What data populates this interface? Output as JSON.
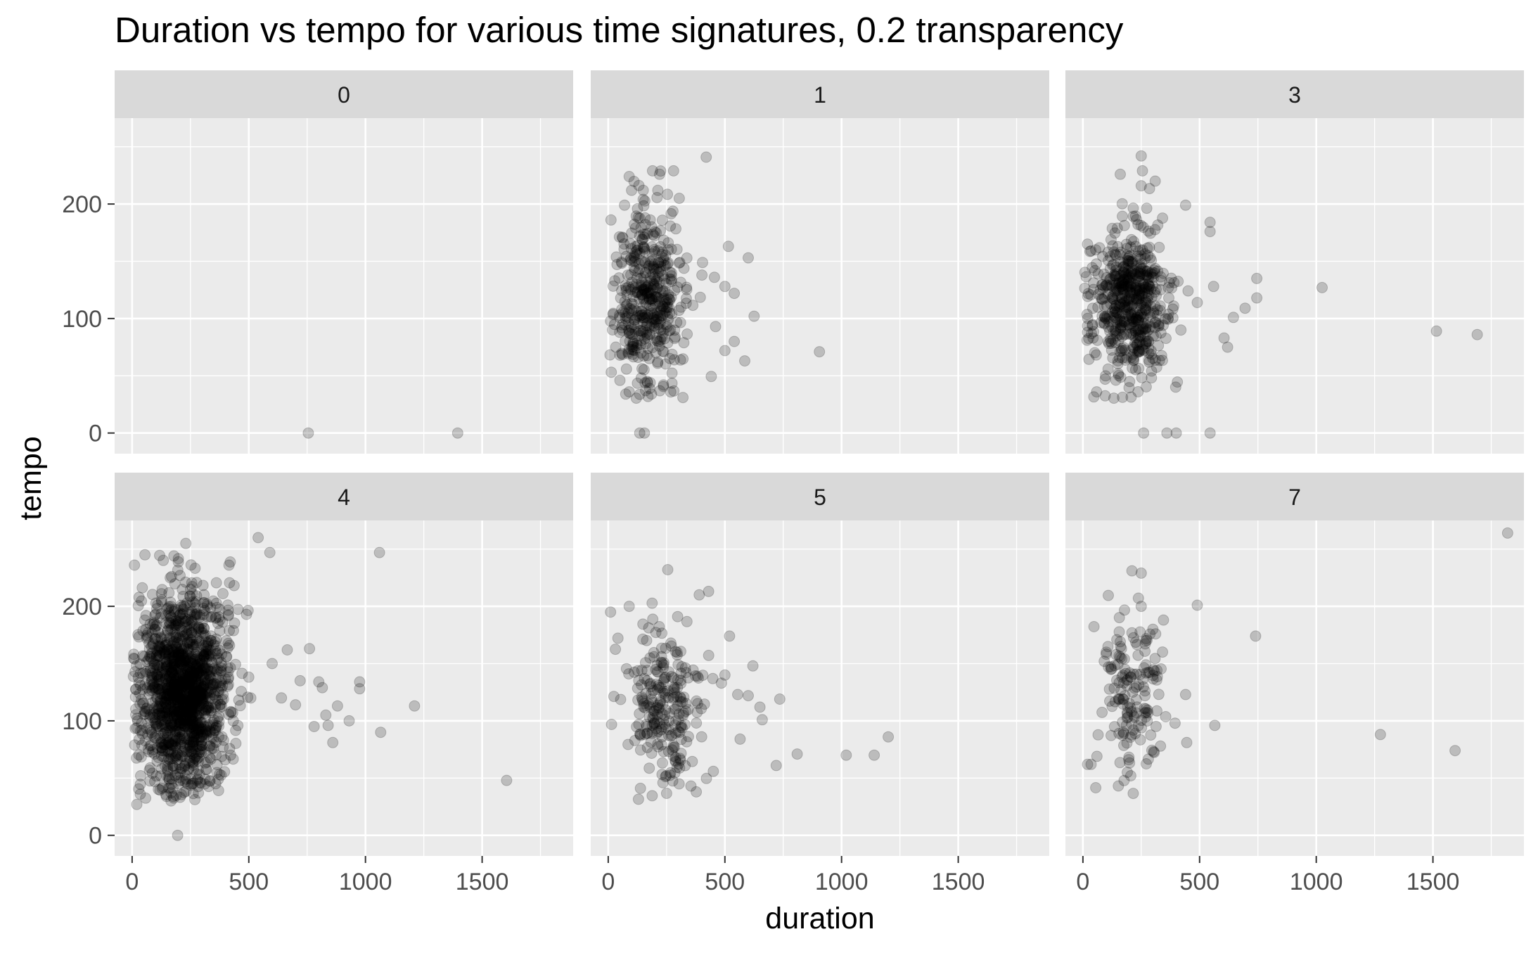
{
  "chart_data": {
    "type": "scatter",
    "title": "Duration vs tempo for various time signatures, 0.2 transparency",
    "xlabel": "duration",
    "ylabel": "tempo",
    "xlim": [
      -75,
      1890
    ],
    "ylim": [
      -18,
      275
    ],
    "x_ticks": [
      0,
      500,
      1000,
      1500
    ],
    "y_ticks": [
      0,
      100,
      200
    ],
    "facet_layout": {
      "rows": 2,
      "cols": 3
    },
    "point_alpha": 0.2,
    "grid": true,
    "legend": "none",
    "colors": {
      "panel_bg": "#EBEBEB",
      "strip_bg": "#D9D9D9",
      "grid_major": "#FFFFFF",
      "point_fill": "#000000",
      "axis_text": "#4D4D4D",
      "text": "#000000"
    },
    "facets": [
      {
        "label": "0",
        "points": [
          [
            755,
            0
          ],
          [
            1395,
            0
          ]
        ]
      },
      {
        "label": "1",
        "points": [
          [
            420,
            241
          ],
          [
            905,
            71
          ],
          [
            600,
            153
          ],
          [
            625,
            102
          ],
          [
            585,
            63
          ],
          [
            515,
            163
          ],
          [
            540,
            122
          ],
          [
            500,
            128
          ],
          [
            320,
            31
          ],
          [
            135,
            0
          ],
          [
            155,
            0
          ],
          [
            90,
            36
          ],
          [
            75,
            34
          ],
          [
            50,
            46
          ],
          [
            160,
            37
          ],
          [
            180,
            44
          ],
          [
            280,
            229
          ],
          [
            220,
            226
          ],
          [
            190,
            229
          ],
          [
            150,
            212
          ],
          [
            100,
            212
          ],
          [
            90,
            224
          ],
          [
            70,
            199
          ],
          [
            60,
            171
          ],
          [
            540,
            80
          ],
          [
            500,
            72
          ],
          [
            460,
            93
          ],
          [
            455,
            136
          ]
        ],
        "cluster": {
          "cx": 175,
          "cy": 122,
          "sx": 75,
          "sy": 38,
          "n": 440,
          "seed": 11
        }
      },
      {
        "label": "3",
        "points": [
          [
            250,
            242
          ],
          [
            255,
            229
          ],
          [
            1025,
            127
          ],
          [
            1515,
            89
          ],
          [
            1690,
            86
          ],
          [
            745,
            135
          ],
          [
            745,
            118
          ],
          [
            695,
            109
          ],
          [
            645,
            101
          ],
          [
            620,
            75
          ],
          [
            605,
            83
          ],
          [
            560,
            128
          ],
          [
            545,
            176
          ],
          [
            545,
            184
          ],
          [
            440,
            199
          ],
          [
            310,
            220
          ],
          [
            250,
            216
          ],
          [
            160,
            226
          ],
          [
            260,
            0
          ],
          [
            360,
            0
          ],
          [
            400,
            0
          ],
          [
            545,
            0
          ],
          [
            490,
            114
          ],
          [
            420,
            90
          ],
          [
            20,
            88
          ],
          [
            40,
            94
          ],
          [
            55,
            160
          ]
        ],
        "cluster": {
          "cx": 200,
          "cy": 112,
          "sx": 80,
          "sy": 32,
          "n": 560,
          "seed": 23
        }
      },
      {
        "label": "4",
        "points": [
          [
            1605,
            48
          ],
          [
            1060,
            247
          ],
          [
            1065,
            90
          ],
          [
            1210,
            113
          ],
          [
            975,
            128
          ],
          [
            975,
            134
          ],
          [
            880,
            113
          ],
          [
            860,
            81
          ],
          [
            840,
            96
          ],
          [
            830,
            105
          ],
          [
            815,
            129
          ],
          [
            800,
            134
          ],
          [
            760,
            163
          ],
          [
            700,
            114
          ],
          [
            665,
            162
          ],
          [
            590,
            247
          ],
          [
            540,
            260
          ],
          [
            195,
            0
          ],
          [
            20,
            27
          ],
          [
            35,
            36
          ],
          [
            415,
            236
          ],
          [
            230,
            255
          ],
          [
            55,
            245
          ],
          [
            10,
            236
          ],
          [
            490,
            193
          ],
          [
            600,
            150
          ],
          [
            640,
            120
          ],
          [
            720,
            135
          ],
          [
            780,
            95
          ],
          [
            930,
            100
          ]
        ],
        "cluster": {
          "cx": 225,
          "cy": 125,
          "sx": 90,
          "sy": 42,
          "n": 1500,
          "seed": 37
        }
      },
      {
        "label": "5",
        "points": [
          [
            10,
            195
          ],
          [
            720,
            61
          ],
          [
            810,
            71
          ],
          [
            1020,
            70
          ],
          [
            1140,
            70
          ],
          [
            1200,
            86
          ],
          [
            735,
            119
          ],
          [
            660,
            101
          ],
          [
            650,
            112
          ],
          [
            620,
            148
          ],
          [
            565,
            84
          ],
          [
            520,
            174
          ],
          [
            500,
            140
          ],
          [
            485,
            133
          ],
          [
            390,
            210
          ],
          [
            430,
            213
          ],
          [
            255,
            232
          ],
          [
            90,
            200
          ],
          [
            555,
            123
          ],
          [
            600,
            122
          ]
        ],
        "cluster": {
          "cx": 240,
          "cy": 115,
          "sx": 85,
          "sy": 35,
          "n": 240,
          "seed": 53
        }
      },
      {
        "label": "7",
        "points": [
          [
            1820,
            264
          ],
          [
            1595,
            74
          ],
          [
            1275,
            88
          ],
          [
            740,
            174
          ],
          [
            565,
            96
          ],
          [
            490,
            201
          ],
          [
            440,
            123
          ],
          [
            395,
            98
          ],
          [
            445,
            81
          ],
          [
            345,
            188
          ],
          [
            210,
            231
          ],
          [
            250,
            229
          ],
          [
            205,
            52
          ],
          [
            20,
            62
          ],
          [
            35,
            62
          ],
          [
            60,
            69
          ],
          [
            100,
            160
          ],
          [
            120,
            145
          ],
          [
            250,
            200
          ],
          [
            300,
            180
          ]
        ],
        "cluster": {
          "cx": 215,
          "cy": 120,
          "sx": 75,
          "sy": 38,
          "n": 150,
          "seed": 71
        }
      }
    ]
  }
}
